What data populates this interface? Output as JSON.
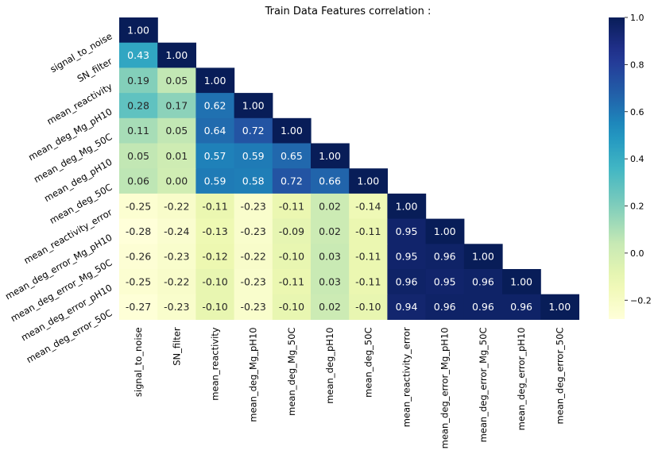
{
  "chart_data": {
    "type": "heatmap",
    "title": "Train Data Features correlation :",
    "variables": [
      "signal_to_noise",
      "SN_filter",
      "mean_reactivity",
      "mean_deg_Mg_pH10",
      "mean_deg_Mg_50C",
      "mean_deg_pH10",
      "mean_deg_50C",
      "mean_reactivity_error",
      "mean_deg_error_Mg_pH10",
      "mean_deg_error_Mg_50C",
      "mean_deg_error_pH10",
      "mean_deg_error_50C"
    ],
    "mask": "upper-triangle",
    "value_format": "2 decimals",
    "values": [
      [
        1.0
      ],
      [
        0.43,
        1.0
      ],
      [
        0.19,
        0.05,
        1.0
      ],
      [
        0.28,
        0.17,
        0.62,
        1.0
      ],
      [
        0.11,
        0.05,
        0.64,
        0.72,
        1.0
      ],
      [
        0.05,
        0.01,
        0.57,
        0.59,
        0.65,
        1.0
      ],
      [
        0.06,
        0.0,
        0.59,
        0.58,
        0.72,
        0.66,
        1.0
      ],
      [
        -0.25,
        -0.22,
        -0.11,
        -0.23,
        -0.11,
        0.02,
        -0.14,
        1.0
      ],
      [
        -0.28,
        -0.24,
        -0.13,
        -0.23,
        -0.09,
        0.02,
        -0.11,
        0.95,
        1.0
      ],
      [
        -0.26,
        -0.23,
        -0.12,
        -0.22,
        -0.1,
        0.03,
        -0.11,
        0.95,
        0.96,
        1.0
      ],
      [
        -0.25,
        -0.22,
        -0.1,
        -0.23,
        -0.11,
        0.03,
        -0.11,
        0.96,
        0.95,
        0.96,
        1.0
      ],
      [
        -0.27,
        -0.23,
        -0.1,
        -0.23,
        -0.1,
        0.02,
        -0.1,
        0.94,
        0.96,
        0.96,
        0.96,
        1.0
      ]
    ],
    "colormap": "YlGnBu",
    "colorbar": {
      "range": [
        -0.28,
        1.0
      ],
      "ticks": [
        -0.2,
        0.0,
        0.2,
        0.4,
        0.6,
        0.8,
        1.0
      ],
      "tick_labels": [
        "−0.2",
        "0.0",
        "0.2",
        "0.4",
        "0.6",
        "0.8",
        "1.0"
      ]
    }
  }
}
